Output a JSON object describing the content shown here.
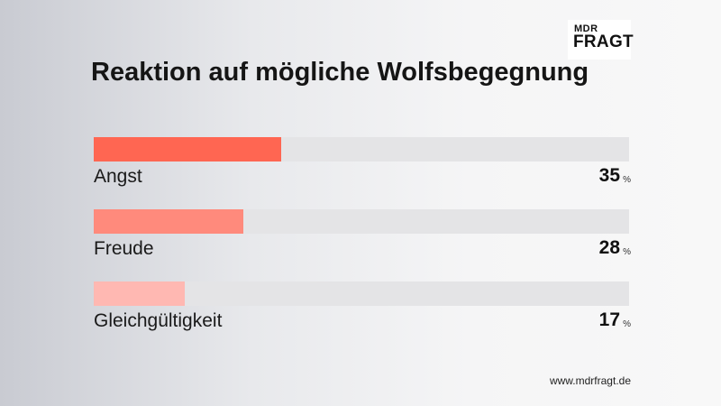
{
  "logo": {
    "small": "MDR",
    "big": "FRAGT"
  },
  "chart_data": {
    "type": "bar",
    "title": "Reaktion auf mögliche Wolfsbegegnung",
    "categories": [
      "Angst",
      "Freude",
      "Gleichgültigkeit"
    ],
    "values": [
      35,
      28,
      17
    ],
    "unit": "%",
    "xlim": [
      0,
      100
    ],
    "colors": [
      "#ff6652",
      "#ff8a7c",
      "#ffb8b2"
    ],
    "track_color": "#e4e4e6"
  },
  "source": "www.mdrfragt.de"
}
